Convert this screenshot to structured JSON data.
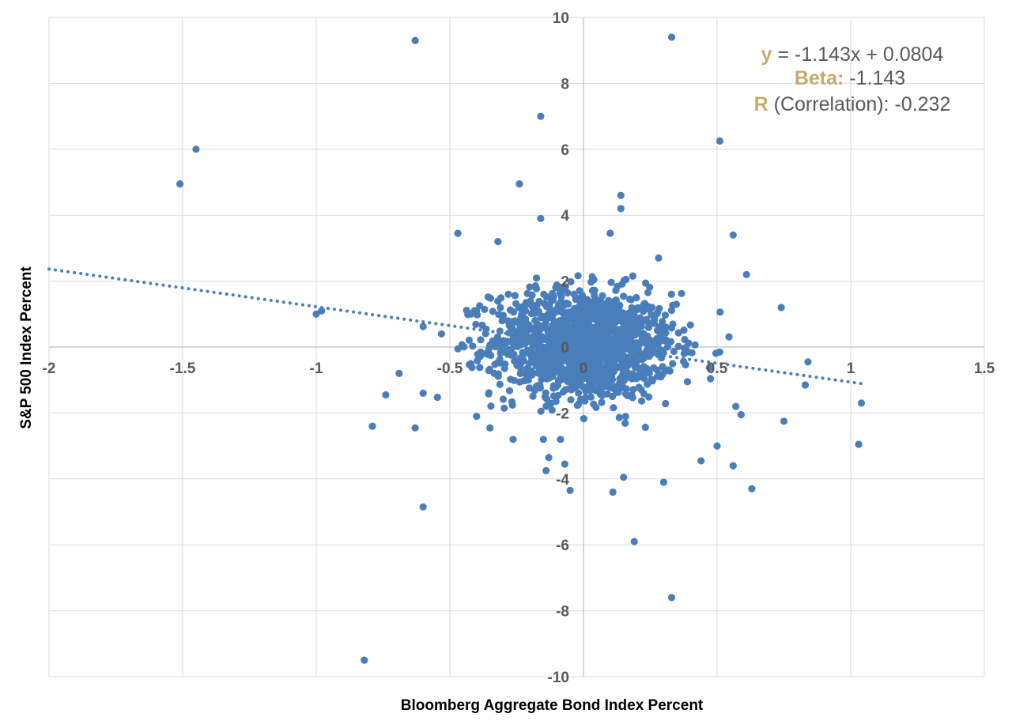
{
  "chart_data": {
    "type": "scatter",
    "title": "",
    "xlabel": "Bloomberg Aggregate Bond Index Percent",
    "ylabel": "S&P 500 Index Percent",
    "xlim": [
      -2,
      1.5
    ],
    "ylim": [
      -10,
      10
    ],
    "x_ticks": [
      -2,
      -1.5,
      -1,
      -0.5,
      0,
      0.5,
      1,
      1.5
    ],
    "y_ticks": [
      -10,
      -8,
      -6,
      -4,
      -2,
      0,
      2,
      4,
      6,
      8,
      10
    ],
    "x_tick_labels": [
      "-2",
      "-1.5",
      "-1",
      "-0.5",
      "0",
      "0.5",
      "1",
      "1.5"
    ],
    "y_tick_labels": [
      "-10",
      "-8",
      "-6",
      "-4",
      "-2",
      "0",
      "2",
      "4",
      "6",
      "8",
      "10"
    ],
    "grid": true,
    "marker_color": "#4a7ebb",
    "trendline": {
      "style": "dotted",
      "slope": -1.143,
      "intercept": 0.0804,
      "x_range": [
        -2,
        1.05
      ]
    },
    "annotation": {
      "line1_key": "y",
      "line1_rest": " = -1.143x + 0.0804",
      "line2_key": "Beta:",
      "line2_rest": " -1.143",
      "line3_key": "R",
      "line3_rest": " (Correlation): -0.232"
    },
    "outliers": [
      [
        -0.63,
        9.3
      ],
      [
        0.33,
        9.4
      ],
      [
        -0.16,
        7.0
      ],
      [
        0.51,
        6.25
      ],
      [
        -1.45,
        6.0
      ],
      [
        -1.51,
        4.95
      ],
      [
        -0.24,
        4.95
      ],
      [
        0.14,
        4.6
      ],
      [
        0.14,
        4.2
      ],
      [
        -0.16,
        3.9
      ],
      [
        -0.47,
        3.45
      ],
      [
        0.1,
        3.45
      ],
      [
        0.56,
        3.4
      ],
      [
        -0.32,
        3.2
      ],
      [
        0.61,
        2.2
      ],
      [
        0.74,
        1.2
      ],
      [
        -1.0,
        1.0
      ],
      [
        -0.98,
        1.1
      ],
      [
        0.84,
        -0.45
      ],
      [
        0.83,
        -1.15
      ],
      [
        1.04,
        -1.7
      ],
      [
        1.03,
        -2.95
      ],
      [
        0.75,
        -2.25
      ],
      [
        -0.69,
        -0.8
      ],
      [
        -0.74,
        -1.45
      ],
      [
        -0.79,
        -2.4
      ],
      [
        -0.63,
        -2.45
      ],
      [
        -0.6,
        -1.4
      ],
      [
        -0.6,
        -4.85
      ],
      [
        -0.82,
        -9.5
      ],
      [
        -0.13,
        -3.35
      ],
      [
        -0.14,
        -3.75
      ],
      [
        -0.07,
        -3.55
      ],
      [
        -0.05,
        -4.35
      ],
      [
        0.11,
        -4.4
      ],
      [
        0.15,
        -3.95
      ],
      [
        0.19,
        -5.9
      ],
      [
        0.33,
        -7.6
      ],
      [
        0.3,
        -4.1
      ],
      [
        0.56,
        -3.6
      ],
      [
        0.63,
        -4.3
      ],
      [
        0.5,
        -3.0
      ],
      [
        0.44,
        -3.45
      ],
      [
        0.57,
        -1.8
      ],
      [
        0.59,
        -2.05
      ],
      [
        -0.4,
        -2.1
      ],
      [
        -0.35,
        -2.45
      ],
      [
        -0.15,
        -2.8
      ]
    ],
    "cluster": {
      "count": 1400,
      "x_sd": 0.17,
      "y_sd": 0.82,
      "trend_slope": -1.143,
      "trend_intercept": 0.0804
    }
  }
}
